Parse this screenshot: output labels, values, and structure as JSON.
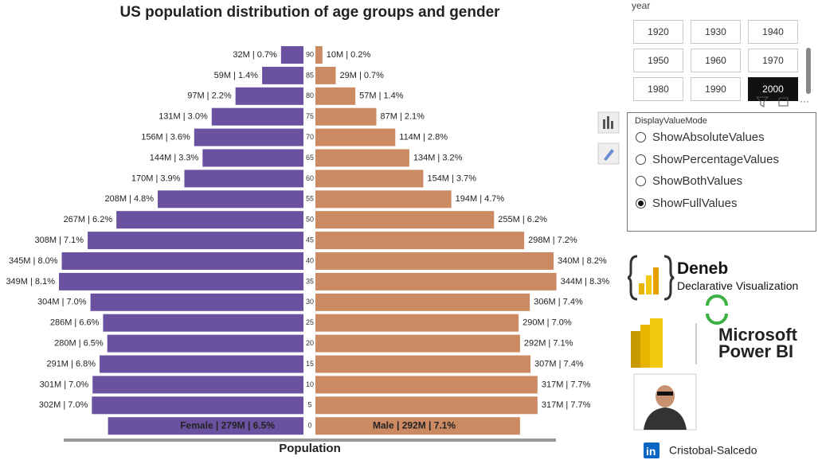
{
  "chart_data": {
    "type": "pyramid",
    "title": "US population distribution of age groups and gender",
    "x_label": "Population",
    "categories": [
      "90",
      "85",
      "80",
      "75",
      "70",
      "65",
      "60",
      "55",
      "50",
      "45",
      "40",
      "35",
      "30",
      "25",
      "20",
      "15",
      "10",
      "5",
      "0"
    ],
    "series": [
      {
        "color": "#6a52a0",
        "values": [
          32,
          59,
          97,
          131,
          156,
          144,
          170,
          208,
          267,
          308,
          345,
          349,
          304,
          286,
          280,
          291,
          301,
          302,
          279
        ],
        "value_labels": [
          "32M | 0.7%",
          "59M | 1.4%",
          "97M | 2.2%",
          "131M | 3.0%",
          "156M | 3.6%",
          "144M | 3.3%",
          "170M | 3.9%",
          "208M | 4.8%",
          "267M | 6.2%",
          "308M | 7.1%",
          "345M | 8.0%",
          "349M | 8.1%",
          "304M | 7.0%",
          "286M | 6.6%",
          "280M | 6.5%",
          "291M | 6.8%",
          "301M | 7.0%",
          "302M | 7.0%",
          "Female | 279M | 6.5%"
        ]
      },
      {
        "color": "#cc8a63",
        "values": [
          10,
          29,
          57,
          87,
          114,
          134,
          154,
          194,
          255,
          298,
          340,
          344,
          306,
          290,
          292,
          307,
          317,
          317,
          292
        ],
        "value_labels": [
          "10M | 0.2%",
          "29M | 0.7%",
          "57M | 1.4%",
          "87M | 2.1%",
          "114M | 2.8%",
          "134M | 3.2%",
          "154M | 3.7%",
          "194M | 4.7%",
          "255M | 6.2%",
          "298M | 7.2%",
          "340M | 8.2%",
          "344M | 8.3%",
          "306M | 7.4%",
          "290M | 7.0%",
          "292M | 7.1%",
          "307M | 7.4%",
          "317M | 7.7%",
          "317M | 7.7%",
          "Male | 292M | 7.1%"
        ]
      }
    ]
  },
  "year_slicer": {
    "label": "year",
    "options": [
      "1920",
      "1930",
      "1940",
      "1950",
      "1960",
      "1970",
      "1980",
      "1990",
      "2000"
    ],
    "selected_index": 8
  },
  "value_mode": {
    "title": "DisplayValueMode",
    "options": [
      "ShowAbsoluteValues",
      "ShowPercentageValues",
      "ShowBothValues",
      "ShowFullValues"
    ],
    "selected_index": 3
  },
  "branding": {
    "deneb": "Deneb",
    "deneb_tagline": "Declarative Visualization",
    "microsoft": "Microsoft",
    "power_bi": "Power BI",
    "linkedin_icon": "in",
    "author": "Cristobal-Salcedo"
  }
}
